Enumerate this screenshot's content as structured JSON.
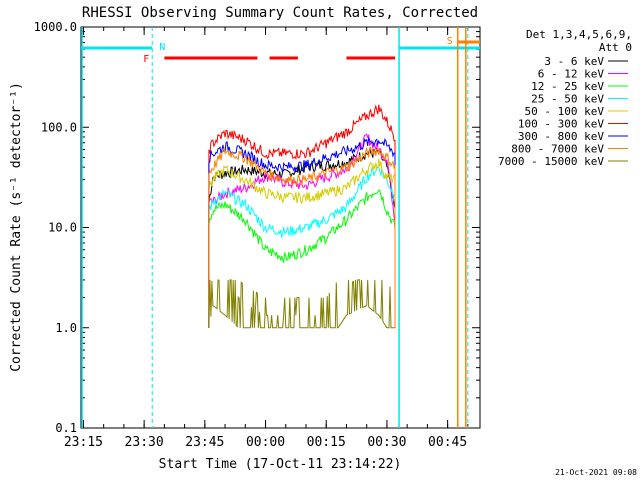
{
  "colors": {
    "3 - 6 keV": "#000000",
    "6 - 12 keV": "#ff00ff",
    "12 - 25 keV": "#00ff00",
    "25 - 50 keV": "#00ffff",
    "50 - 100 keV": "#d4cc00",
    "100 - 300 keV": "#ff0000",
    "300 - 800 keV": "#0000ff",
    "800 - 7000 keV": "#ff8000",
    "7000 - 15000 keV": "#808000",
    "cyan_marker": "#00e5ee",
    "orange_marker": "#ff8000",
    "flag_red": "#ff0000"
  },
  "chart_data": {
    "type": "line",
    "title": "RHESSI Observing Summary Count Rates, Corrected",
    "xlabel": "Start Time (17-Oct-11 23:14:22)",
    "ylabel": "Corrected Count Rate (s⁻¹ detector⁻¹)",
    "yscale": "log",
    "ylim": [
      0.1,
      1000.0
    ],
    "xlim": [
      "23:14:22",
      "00:53"
    ],
    "x_ticks": [
      "23:15",
      "23:30",
      "23:45",
      "00:00",
      "00:15",
      "00:30",
      "00:45"
    ],
    "y_ticks": [
      "0.1",
      "1.0",
      "10.0",
      "100.0",
      "1000.0"
    ],
    "detector_info": [
      "Det 1,3,4,5,6,9,",
      "Att 0"
    ],
    "flags": {
      "N_label": "N",
      "F_label": "F",
      "S_label": "S",
      "flare_intervals": [
        [
          "23:35",
          "23:58"
        ],
        [
          "00:01",
          "00:08"
        ],
        [
          "00:20",
          "00:32"
        ]
      ]
    },
    "x_minutes": [
      -14,
      -13,
      -10,
      -5,
      0,
      5,
      10,
      15,
      20,
      25,
      28,
      30,
      32
    ],
    "series": [
      {
        "name": "3 - 6 keV",
        "values": [
          18,
          32,
          35,
          38,
          35,
          34,
          40,
          42,
          45,
          55,
          55,
          40,
          15
        ]
      },
      {
        "name": "6 - 12 keV",
        "values": [
          18,
          18,
          22,
          25,
          33,
          28,
          26,
          32,
          38,
          80,
          60,
          50,
          12
        ]
      },
      {
        "name": "12 - 25 keV",
        "values": [
          12,
          15,
          17,
          12,
          6,
          5,
          6,
          8,
          12,
          20,
          25,
          15,
          10
        ]
      },
      {
        "name": "25 - 50 keV",
        "values": [
          15,
          18,
          22,
          17,
          10,
          9,
          10,
          12,
          16,
          32,
          40,
          30,
          20
        ]
      },
      {
        "name": "50 - 100 keV",
        "values": [
          25,
          30,
          38,
          30,
          22,
          20,
          20,
          22,
          25,
          38,
          45,
          32,
          30
        ]
      },
      {
        "name": "100 - 300 keV",
        "values": [
          60,
          70,
          88,
          75,
          55,
          55,
          55,
          70,
          90,
          130,
          155,
          115,
          80
        ]
      },
      {
        "name": "300 - 800 keV",
        "values": [
          50,
          55,
          65,
          55,
          42,
          40,
          42,
          50,
          58,
          70,
          75,
          65,
          55
        ]
      },
      {
        "name": "800 - 7000 keV",
        "values": [
          35,
          40,
          58,
          50,
          35,
          30,
          30,
          35,
          40,
          55,
          60,
          50,
          40
        ]
      },
      {
        "name": "7000 - 15000 keV",
        "values": [
          1.5,
          2.5,
          2,
          1.3,
          1,
          1,
          1,
          1,
          2,
          2.5,
          2,
          1.5,
          1
        ]
      }
    ]
  },
  "footer": {
    "date": "21-Oct-2021 09:08"
  }
}
